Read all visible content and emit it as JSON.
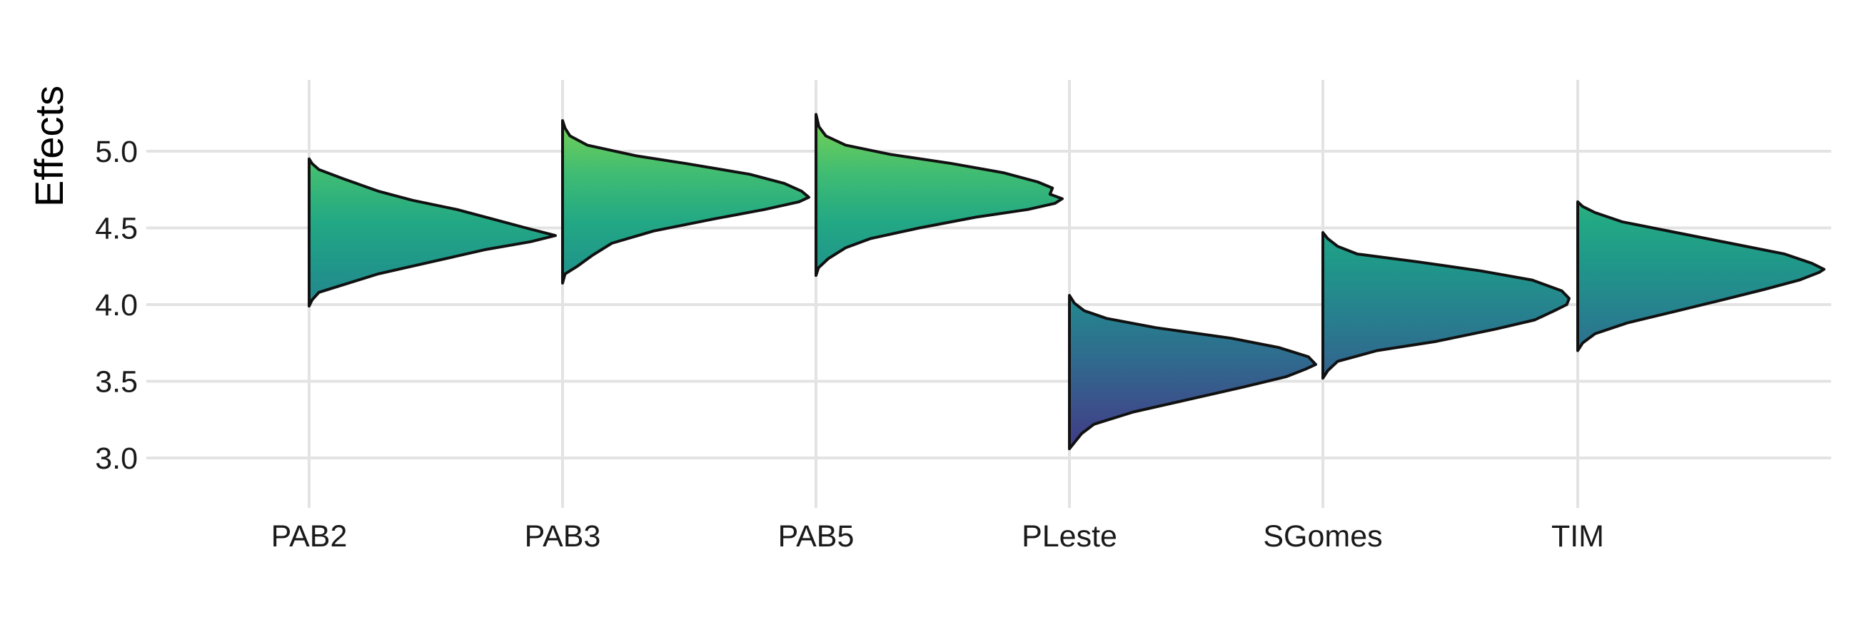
{
  "chart_data": {
    "type": "half-violin",
    "ylabel": "Effects",
    "xlabel": "",
    "title": "",
    "ylim": [
      2.66,
      5.45
    ],
    "yticks": [
      "3.0",
      "3.5",
      "4.0",
      "4.5",
      "5.0"
    ],
    "grid": true,
    "legend": "none",
    "colorscale": "viridis",
    "categories": [
      "PAB2",
      "PAB3",
      "PAB5",
      "PLeste",
      "SGomes",
      "TIM"
    ],
    "series": [
      {
        "category": "PAB2",
        "min": 3.99,
        "max": 4.95,
        "peak": 4.45,
        "density": [
          [
            3.99,
            0.0
          ],
          [
            4.03,
            0.012
          ],
          [
            4.08,
            0.04
          ],
          [
            4.12,
            0.12
          ],
          [
            4.2,
            0.28
          ],
          [
            4.28,
            0.5
          ],
          [
            4.36,
            0.72
          ],
          [
            4.41,
            0.9
          ],
          [
            4.45,
            1.0
          ],
          [
            4.5,
            0.88
          ],
          [
            4.56,
            0.74
          ],
          [
            4.62,
            0.6
          ],
          [
            4.68,
            0.42
          ],
          [
            4.74,
            0.28
          ],
          [
            4.82,
            0.14
          ],
          [
            4.88,
            0.04
          ],
          [
            4.92,
            0.012
          ],
          [
            4.95,
            0.0
          ]
        ]
      },
      {
        "category": "PAB3",
        "min": 4.14,
        "max": 5.2,
        "peak": 4.7,
        "density": [
          [
            4.14,
            0.0
          ],
          [
            4.2,
            0.01
          ],
          [
            4.25,
            0.06
          ],
          [
            4.32,
            0.12
          ],
          [
            4.4,
            0.2
          ],
          [
            4.48,
            0.37
          ],
          [
            4.56,
            0.62
          ],
          [
            4.62,
            0.82
          ],
          [
            4.67,
            0.96
          ],
          [
            4.7,
            1.0
          ],
          [
            4.74,
            0.97
          ],
          [
            4.79,
            0.9
          ],
          [
            4.85,
            0.76
          ],
          [
            4.92,
            0.5
          ],
          [
            4.97,
            0.3
          ],
          [
            5.04,
            0.1
          ],
          [
            5.1,
            0.03
          ],
          [
            5.15,
            0.01
          ],
          [
            5.2,
            0.0
          ]
        ]
      },
      {
        "category": "PAB5",
        "min": 4.19,
        "max": 5.24,
        "peak": 4.69,
        "density": [
          [
            4.19,
            0.0
          ],
          [
            4.24,
            0.01
          ],
          [
            4.3,
            0.05
          ],
          [
            4.37,
            0.12
          ],
          [
            4.43,
            0.22
          ],
          [
            4.5,
            0.42
          ],
          [
            4.57,
            0.65
          ],
          [
            4.62,
            0.86
          ],
          [
            4.66,
            0.97
          ],
          [
            4.69,
            1.0
          ],
          [
            4.72,
            0.95
          ],
          [
            4.76,
            0.96
          ],
          [
            4.8,
            0.9
          ],
          [
            4.86,
            0.76
          ],
          [
            4.92,
            0.55
          ],
          [
            4.98,
            0.3
          ],
          [
            5.04,
            0.12
          ],
          [
            5.1,
            0.04
          ],
          [
            5.16,
            0.012
          ],
          [
            5.24,
            0.0
          ]
        ]
      },
      {
        "category": "PLeste",
        "min": 3.06,
        "max": 4.06,
        "peak": 3.61,
        "density": [
          [
            3.06,
            0.0
          ],
          [
            3.1,
            0.02
          ],
          [
            3.16,
            0.05
          ],
          [
            3.22,
            0.1
          ],
          [
            3.3,
            0.26
          ],
          [
            3.38,
            0.48
          ],
          [
            3.46,
            0.7
          ],
          [
            3.53,
            0.88
          ],
          [
            3.58,
            0.96
          ],
          [
            3.61,
            1.0
          ],
          [
            3.66,
            0.97
          ],
          [
            3.72,
            0.85
          ],
          [
            3.78,
            0.66
          ],
          [
            3.85,
            0.35
          ],
          [
            3.91,
            0.15
          ],
          [
            3.96,
            0.06
          ],
          [
            4.01,
            0.02
          ],
          [
            4.06,
            0.0
          ]
        ]
      },
      {
        "category": "SGomes",
        "min": 3.52,
        "max": 4.47,
        "peak": 4.04,
        "density": [
          [
            3.52,
            0.0
          ],
          [
            3.57,
            0.02
          ],
          [
            3.63,
            0.06
          ],
          [
            3.7,
            0.22
          ],
          [
            3.76,
            0.46
          ],
          [
            3.84,
            0.7
          ],
          [
            3.9,
            0.86
          ],
          [
            3.96,
            0.94
          ],
          [
            4.0,
            0.99
          ],
          [
            4.04,
            1.0
          ],
          [
            4.09,
            0.97
          ],
          [
            4.16,
            0.85
          ],
          [
            4.22,
            0.64
          ],
          [
            4.28,
            0.38
          ],
          [
            4.33,
            0.14
          ],
          [
            4.38,
            0.06
          ],
          [
            4.43,
            0.02
          ],
          [
            4.47,
            0.0
          ]
        ]
      },
      {
        "category": "TIM",
        "min": 3.7,
        "max": 4.67,
        "peak": 4.23,
        "density": [
          [
            3.7,
            0.0
          ],
          [
            3.75,
            0.02
          ],
          [
            3.81,
            0.07
          ],
          [
            3.88,
            0.2
          ],
          [
            3.95,
            0.38
          ],
          [
            4.02,
            0.56
          ],
          [
            4.1,
            0.76
          ],
          [
            4.16,
            0.9
          ],
          [
            4.21,
            0.98
          ],
          [
            4.23,
            1.0
          ],
          [
            4.27,
            0.95
          ],
          [
            4.33,
            0.84
          ],
          [
            4.4,
            0.62
          ],
          [
            4.47,
            0.4
          ],
          [
            4.54,
            0.18
          ],
          [
            4.6,
            0.07
          ],
          [
            4.64,
            0.02
          ],
          [
            4.67,
            0.0
          ]
        ]
      }
    ]
  }
}
